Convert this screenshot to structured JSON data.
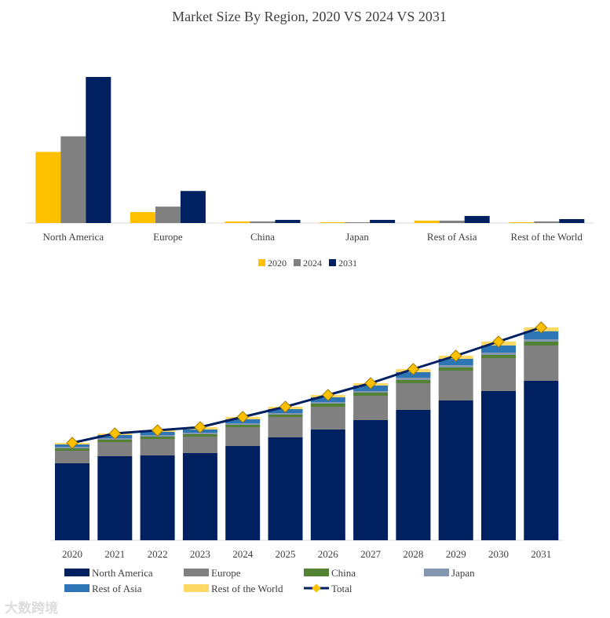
{
  "chart_data": [
    {
      "type": "bar",
      "title": "Market Size By Region, 2020 VS 2024 VS 2031",
      "categories": [
        "North America",
        "Europe",
        "China",
        "Japan",
        "Rest of Asia",
        "Rest of the World"
      ],
      "series": [
        {
          "name": "2020",
          "color": "#FFC000",
          "values": [
            91,
            14,
            2,
            1,
            3,
            1
          ]
        },
        {
          "name": "2024",
          "color": "#808080",
          "values": [
            111,
            21,
            2,
            1,
            3,
            2
          ]
        },
        {
          "name": "2031",
          "color": "#002060",
          "values": [
            187,
            41,
            4,
            4,
            9,
            5
          ]
        }
      ],
      "xlabel": "",
      "ylabel": "",
      "ylim": [
        0,
        190
      ],
      "grid": false,
      "legend": "bottom",
      "note": "relative values, no axis shown"
    },
    {
      "type": "bar",
      "stacked": true,
      "categories": [
        "2020",
        "2021",
        "2022",
        "2023",
        "2024",
        "2025",
        "2026",
        "2027",
        "2028",
        "2029",
        "2030",
        "2031"
      ],
      "series": [
        {
          "name": "North America",
          "color": "#002060",
          "values": [
            98,
            107,
            108,
            111,
            120,
            131,
            141,
            153,
            166,
            178,
            190,
            203
          ]
        },
        {
          "name": "Europe",
          "color": "#808080",
          "values": [
            16,
            18,
            21,
            21,
            24,
            26,
            29,
            31,
            34,
            38,
            42,
            45
          ]
        },
        {
          "name": "China",
          "color": "#548235",
          "values": [
            3,
            3,
            3,
            3,
            3,
            3,
            4,
            4,
            4,
            4,
            4,
            5
          ]
        },
        {
          "name": "Japan",
          "color": "#8497B0",
          "values": [
            2,
            2,
            2,
            2,
            2,
            2,
            2,
            2,
            3,
            3,
            3,
            3
          ]
        },
        {
          "name": "Rest of Asia",
          "color": "#2E75B6",
          "values": [
            3,
            4,
            4,
            4,
            5,
            5,
            6,
            7,
            7,
            8,
            9,
            10
          ]
        },
        {
          "name": "Rest of the World",
          "color": "#FFD966",
          "values": [
            2,
            2,
            2,
            3,
            3,
            3,
            3,
            3,
            4,
            4,
            5,
            5
          ]
        }
      ],
      "line": {
        "name": "Total",
        "color": "#002060",
        "marker_color": "#FFC000",
        "values": [
          124,
          136,
          140,
          144,
          157,
          170,
          185,
          200,
          218,
          235,
          253,
          271
        ]
      },
      "xlabel": "",
      "ylabel": "",
      "ylim": [
        0,
        275
      ],
      "grid": false,
      "legend": "bottom"
    }
  ],
  "watermark": "大数跨境"
}
